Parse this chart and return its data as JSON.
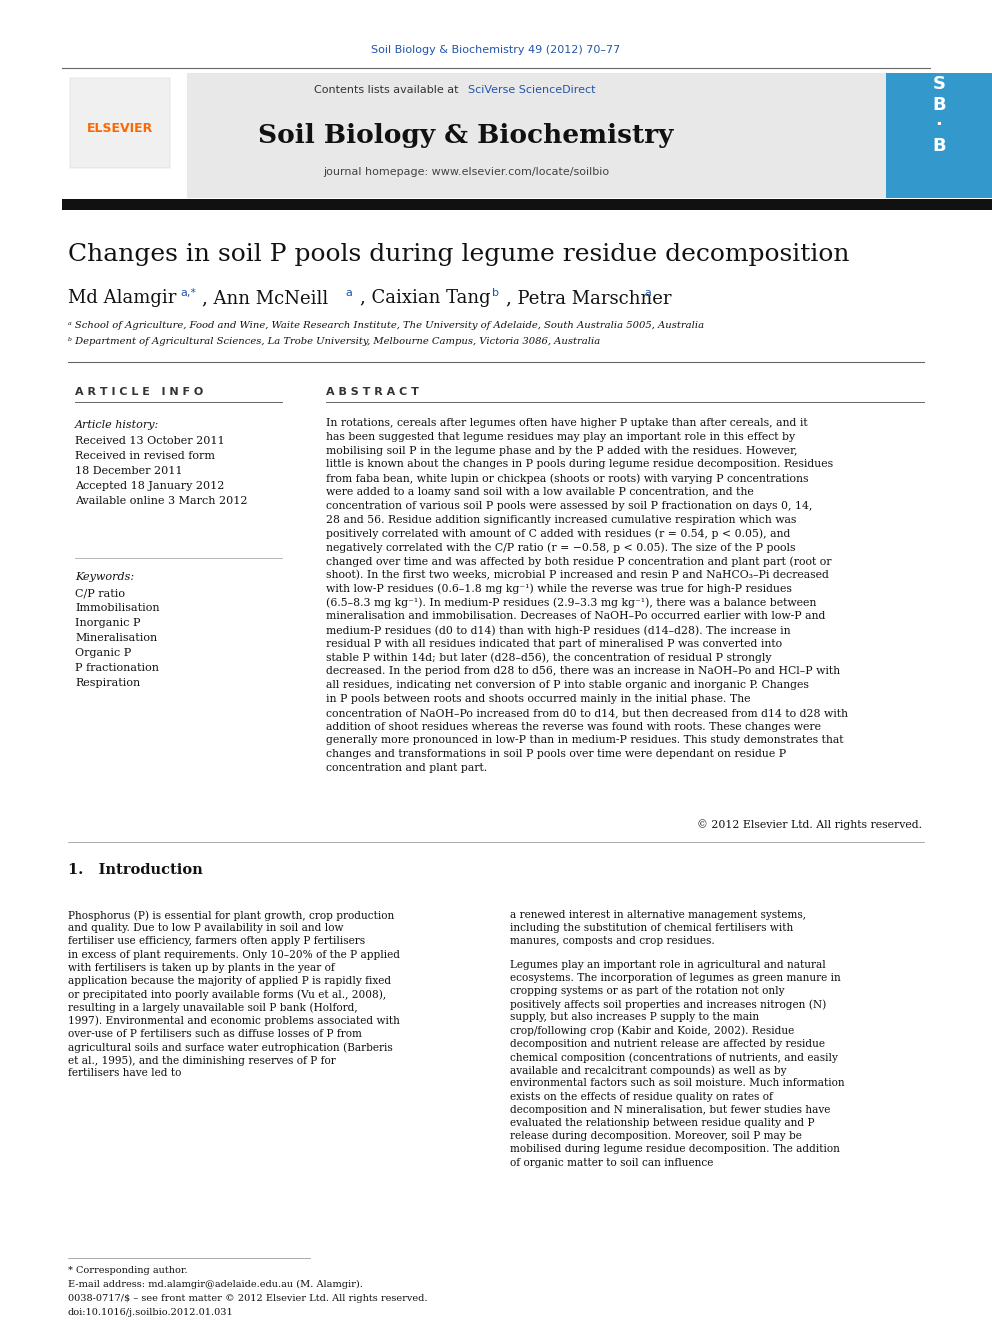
{
  "journal_ref": "Soil Biology & Biochemistry 49 (2012) 70–77",
  "journal_ref_color": "#2255aa",
  "header_text": "Contents lists available at",
  "sciverse_text": "SciVerse ScienceDirect",
  "sciverse_color": "#2255aa",
  "journal_title": "Soil Biology & Biochemistry",
  "journal_homepage": "journal homepage: www.elsevier.com/locate/soilbio",
  "paper_title": "Changes in soil P pools during legume residue decomposition",
  "affil_a": "ᵃ School of Agriculture, Food and Wine, Waite Research Institute, The University of Adelaide, South Australia 5005, Australia",
  "affil_b": "ᵇ Department of Agricultural Sciences, La Trobe University, Melbourne Campus, Victoria 3086, Australia",
  "article_info_header": "A R T I C L E   I N F O",
  "abstract_header": "A B S T R A C T",
  "article_history_label": "Article history:",
  "received1": "Received 13 October 2011",
  "received_revised": "Received in revised form",
  "revised_date": "18 December 2011",
  "accepted": "Accepted 18 January 2012",
  "available": "Available online 3 March 2012",
  "keywords_label": "Keywords:",
  "keywords": [
    "C/P ratio",
    "Immobilisation",
    "Inorganic P",
    "Mineralisation",
    "Organic P",
    "P fractionation",
    "Respiration"
  ],
  "abstract_text": "In rotations, cereals after legumes often have higher P uptake than after cereals, and it has been suggested that legume residues may play an important role in this effect by mobilising soil P in the legume phase and by the P added with the residues. However, little is known about the changes in P pools during legume residue decomposition. Residues from faba bean, white lupin or chickpea (shoots or roots) with varying P concentrations were added to a loamy sand soil with a low available P concentration, and the concentration of various soil P pools were assessed by soil P fractionation on days 0, 14, 28 and 56. Residue addition significantly increased cumulative respiration which was positively correlated with amount of C added with residues (r = 0.54, p < 0.05), and negatively correlated with the C/P ratio (r = −0.58, p < 0.05). The size of the P pools changed over time and was affected by both residue P concentration and plant part (root or shoot). In the first two weeks, microbial P increased and resin P and NaHCO₃–Pi decreased with low-P residues (0.6–1.8 mg kg⁻¹) while the reverse was true for high-P residues (6.5–8.3 mg kg⁻¹). In medium-P residues (2.9–3.3 mg kg⁻¹), there was a balance between mineralisation and immobilisation. Decreases of NaOH–Po occurred earlier with low-P and medium-P residues (d0 to d14) than with high-P residues (d14–d28). The increase in residual P with all residues indicated that part of mineralised P was converted into stable P within 14d; but later (d28–d56), the concentration of residual P strongly decreased. In the period from d28 to d56, there was an increase in NaOH–Po and HCl–P with all residues, indicating net conversion of P into stable organic and inorganic P. Changes in P pools between roots and shoots occurred mainly in the initial phase. The concentration of NaOH–Po increased from d0 to d14, but then decreased from d14 to d28 with addition of shoot residues whereas the reverse was found with roots. These changes were generally more pronounced in low-P than in medium-P residues. This study demonstrates that changes and transformations in soil P pools over time were dependant on residue P concentration and plant part.",
  "copyright": "© 2012 Elsevier Ltd. All rights reserved.",
  "intro_header": "1.   Introduction",
  "intro_col1": "Phosphorus (P) is essential for plant growth, crop production and quality. Due to low P availability in soil and low fertiliser use efficiency, farmers often apply P fertilisers in excess of plant requirements. Only 10–20% of the P applied with fertilisers is taken up by plants in the year of application because the majority of applied P is rapidly fixed or precipitated into poorly available forms (Vu et al., 2008), resulting in a largely unavailable soil P bank (Holford, 1997). Environmental and economic problems associated with over-use of P fertilisers such as diffuse losses of P from agricultural soils and surface water eutrophication (Barberis et al., 1995), and the diminishing reserves of P for fertilisers have led to",
  "intro_col2": "a renewed interest in alternative management systems, including the substitution of chemical fertilisers with manures, composts and crop residues.\n\nLegumes play an important role in agricultural and natural ecosystems. The incorporation of legumes as green manure in cropping systems or as part of the rotation not only positively affects soil properties and increases nitrogen (N) supply, but also increases P supply to the main crop/following crop (Kabir and Koide, 2002). Residue decomposition and nutrient release are affected by residue chemical composition (concentrations of nutrients, and easily available and recalcitrant compounds) as well as by environmental factors such as soil moisture. Much information exists on the effects of residue quality on rates of decomposition and N mineralisation, but fewer studies have evaluated the relationship between residue quality and P release during decomposition. Moreover, soil P may be mobilised during legume residue decomposition. The addition of organic matter to soil can influence",
  "footnote_star": "* Corresponding author.",
  "footnote_email": "E-mail address: md.alamgir@adelaide.edu.au (M. Alamgir).",
  "footnote_issn": "0038-0717/$ – see front matter © 2012 Elsevier Ltd. All rights reserved.",
  "footnote_doi": "doi:10.1016/j.soilbio.2012.01.031",
  "header_bg_color": "#e8e8e8",
  "thick_bar_color": "#111111",
  "elsevier_color": "#ff6600",
  "page_bg": "#ffffff"
}
